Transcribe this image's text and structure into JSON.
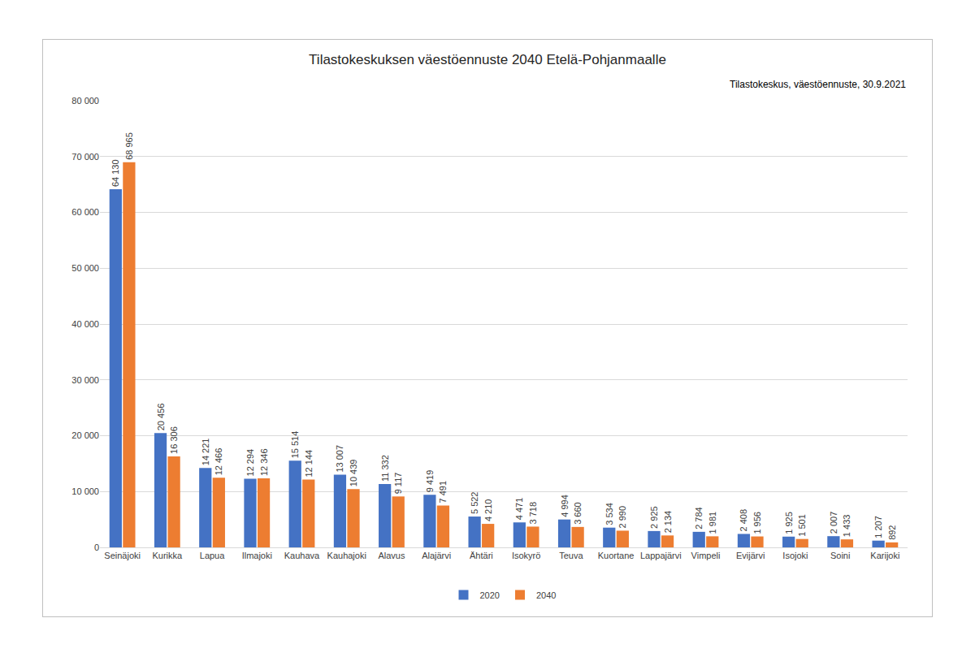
{
  "chart_data": {
    "type": "bar",
    "title": "Tilastokeskuksen väestöennuste 2040 Etelä-Pohjanmaalle",
    "subtitle": "Tilastokeskus, väestöennuste, 30.9.2021",
    "categories": [
      "Seinäjoki",
      "Kurikka",
      "Lapua",
      "Ilmajoki",
      "Kauhava",
      "Kauhajoki",
      "Alavus",
      "Alajärvi",
      "Ähtäri",
      "Isokyrö",
      "Teuva",
      "Kuortane",
      "Lappajärvi",
      "Vimpeli",
      "Evijärvi",
      "Isojoki",
      "Soini",
      "Karijoki"
    ],
    "series": [
      {
        "name": "2020",
        "color": "#4472c4",
        "values": [
          64130,
          20456,
          14221,
          12294,
          15514,
          13007,
          11332,
          9419,
          5522,
          4471,
          4994,
          3534,
          2925,
          2784,
          2408,
          1925,
          2007,
          1207
        ],
        "value_labels": [
          "64 130",
          "20 456",
          "14 221",
          "12 294",
          "15 514",
          "13 007",
          "11 332",
          "9 419",
          "5 522",
          "4 471",
          "4 994",
          "3 534",
          "2 925",
          "2 784",
          "2 408",
          "1 925",
          "2 007",
          "1 207"
        ]
      },
      {
        "name": "2040",
        "color": "#ed7d31",
        "values": [
          68965,
          16306,
          12466,
          12346,
          12144,
          10439,
          9117,
          7491,
          4210,
          3718,
          3660,
          2990,
          2134,
          1981,
          1956,
          1501,
          1433,
          892
        ],
        "value_labels": [
          "68 965",
          "16 306",
          "12 466",
          "12 346",
          "12 144",
          "10 439",
          "9 117",
          "7 491",
          "4 210",
          "3 718",
          "3 660",
          "2 990",
          "2 134",
          "1 981",
          "1 956",
          "1 501",
          "1 433",
          "892"
        ]
      }
    ],
    "ylim": [
      0,
      80000
    ],
    "yticks": [
      0,
      {
        "value": 10000,
        "label": "10 000"
      },
      {
        "value": 20000,
        "label": "20 000"
      },
      {
        "value": 30000,
        "label": "30 000"
      },
      {
        "value": 40000,
        "label": "40 000"
      },
      {
        "value": 50000,
        "label": "50 000"
      },
      {
        "value": 60000,
        "label": "60 000"
      },
      {
        "value": 70000,
        "label": "70 000"
      },
      {
        "value": 80000,
        "label": "80 000"
      }
    ],
    "grid": true,
    "legend": "bottom",
    "data_labels": true
  }
}
